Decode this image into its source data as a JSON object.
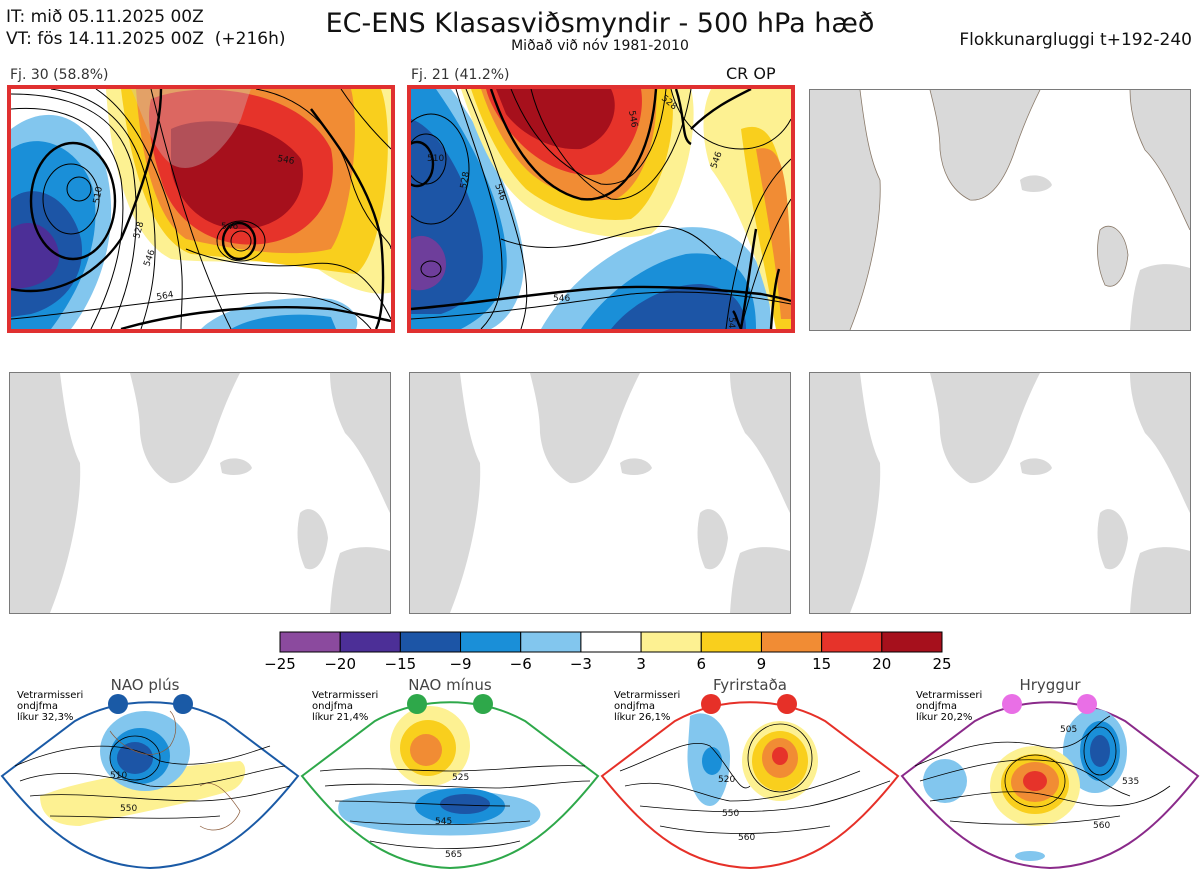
{
  "header": {
    "initial_time": "IT: mið 05.11.2025 00Z",
    "valid_time": "VT: fös 14.11.2025 00Z  (+216h)",
    "title": "EC-ENS Klasasviðsmyndir - 500 hPa hæð",
    "subtitle": "Miðað við nóv 1981-2010",
    "window": "Flokkunargluggi t+192-240"
  },
  "panels": [
    {
      "label": "Fj. 30 (58.8%)",
      "active": true,
      "contours": [
        "510",
        "528",
        "546",
        "546",
        "546",
        "564"
      ]
    },
    {
      "label": "Fj. 21 (41.2%)",
      "active": true,
      "tag": "CR OP",
      "contours": [
        "510",
        "528",
        "546",
        "546",
        "546",
        "528",
        "546",
        "546"
      ]
    },
    {
      "label": "",
      "active": false
    },
    {
      "label": "",
      "active": false
    },
    {
      "label": "",
      "active": false
    },
    {
      "label": "",
      "active": false
    }
  ],
  "chart_data": {
    "type": "heatmap",
    "title": "EC-ENS Klasasviðsmyndir - 500 hPa hæð",
    "variable": "500 hPa height anomaly",
    "clusters": [
      {
        "id": 1,
        "members": 30,
        "percent": 58.8
      },
      {
        "id": 2,
        "members": 21,
        "percent": 41.2
      }
    ],
    "colorbar": {
      "ticks": [
        "−25",
        "−20",
        "−15",
        "−9",
        "−6",
        "−3",
        "3",
        "6",
        "9",
        "15",
        "20",
        "25"
      ],
      "bounds": [
        -25,
        -20,
        -15,
        -9,
        -6,
        -3,
        3,
        6,
        9,
        15,
        20,
        25
      ],
      "colors": [
        "#8b4a9e",
        "#4c2f97",
        "#1c55a6",
        "#1a8fd8",
        "#82c6ee",
        "#ffffff",
        "#fdf192",
        "#f9cf1d",
        "#f18c34",
        "#e6332a",
        "#a6101c"
      ]
    }
  },
  "regimes": [
    {
      "name": "NAO plús",
      "season": "Vetrarmisseri",
      "type": "ondjfma",
      "prob": "líkur 32,3%",
      "color": "#1a5aa6",
      "contours": [
        "510",
        "550"
      ]
    },
    {
      "name": "NAO mínus",
      "season": "Vetrarmisseri",
      "type": "ondjfma",
      "prob": "líkur 21,4%",
      "color": "#2ea84a",
      "contours": [
        "525",
        "545",
        "565"
      ]
    },
    {
      "name": "Fyrirstaða",
      "season": "Vetrarmisseri",
      "type": "ondjfma",
      "prob": "líkur 26,1%",
      "color": "#e63028",
      "contours": [
        "520",
        "550",
        "560"
      ]
    },
    {
      "name": "Hryggur",
      "season": "Vetrarmisseri",
      "type": "ondjfma",
      "prob": "líkur 20,2%",
      "color": "#e96fe6",
      "contours": [
        "505",
        "535",
        "560"
      ]
    }
  ],
  "colors": {
    "accent": "#e03030",
    "land": "#d9d9d9",
    "coast": "#8a7a6a"
  }
}
